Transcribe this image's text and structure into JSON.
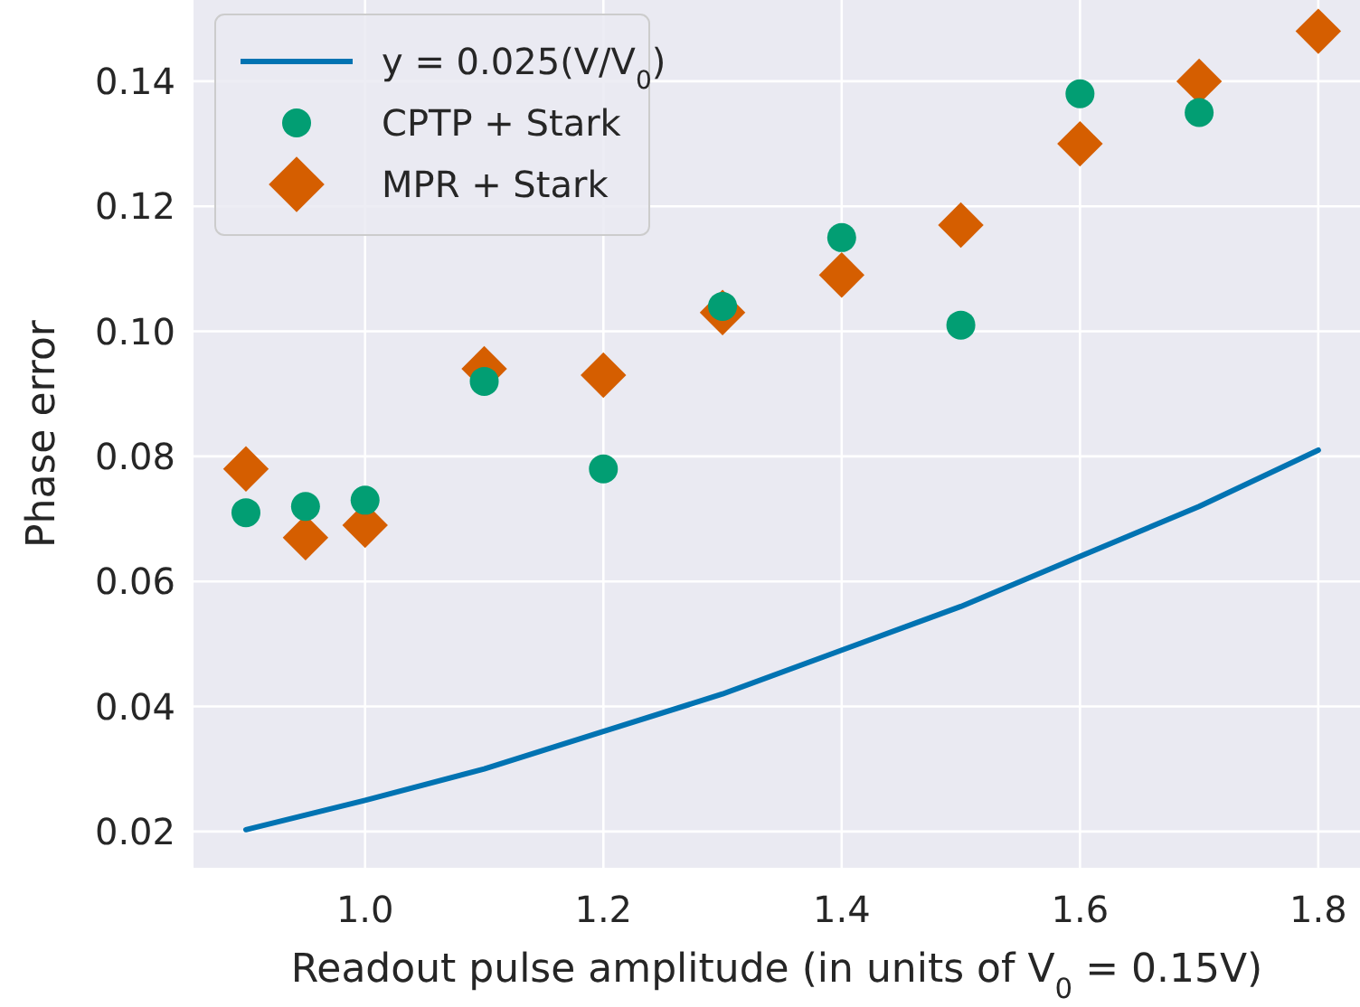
{
  "chart_data": {
    "type": "scatter",
    "xlabel": "Readout pulse amplitude (in units of V$_{0}$ = 0.15V)",
    "ylabel": "Phase error",
    "xlim": [
      0.856,
      1.835
    ],
    "ylim": [
      0.0142,
      0.153
    ],
    "xticks": [
      {
        "value": 1.0,
        "label": "1.0"
      },
      1.2,
      1.4,
      1.6,
      1.8
    ],
    "yticks": [
      0.02,
      0.04,
      0.06,
      0.08,
      {
        "value": 0.1,
        "label": "0.10"
      },
      0.12,
      0.14
    ],
    "grid": true,
    "legend": "top left",
    "series": [
      {
        "name": "y = 0.025(V/V$_{0}$)",
        "type": "line",
        "color": "#0173b2",
        "marker": "none",
        "line_style": "solid",
        "x": [
          0.9,
          1.0,
          1.1,
          1.2,
          1.3,
          1.4,
          1.5,
          1.6,
          1.7,
          1.8
        ],
        "values": [
          0.0203,
          0.025,
          0.03,
          0.036,
          0.042,
          0.049,
          0.056,
          0.064,
          0.072,
          0.081
        ]
      },
      {
        "name": "CPTP + Stark",
        "color": "#029e73",
        "marker": "circle",
        "x": [
          0.9,
          0.95,
          1.0,
          1.1,
          1.2,
          1.3,
          1.4,
          1.5,
          1.6,
          1.7
        ],
        "values": [
          0.071,
          0.072,
          0.073,
          0.092,
          0.078,
          0.104,
          0.115,
          0.101,
          0.138,
          0.135
        ]
      },
      {
        "name": "MPR + Stark",
        "color": "#d55e00",
        "marker": "diamond",
        "x": [
          0.9,
          0.95,
          1.0,
          1.1,
          1.2,
          1.3,
          1.4,
          1.5,
          1.6,
          1.7,
          1.8
        ],
        "values": [
          0.078,
          0.067,
          0.069,
          0.094,
          0.093,
          0.103,
          0.109,
          0.117,
          0.13,
          0.14,
          0.148
        ]
      }
    ]
  }
}
